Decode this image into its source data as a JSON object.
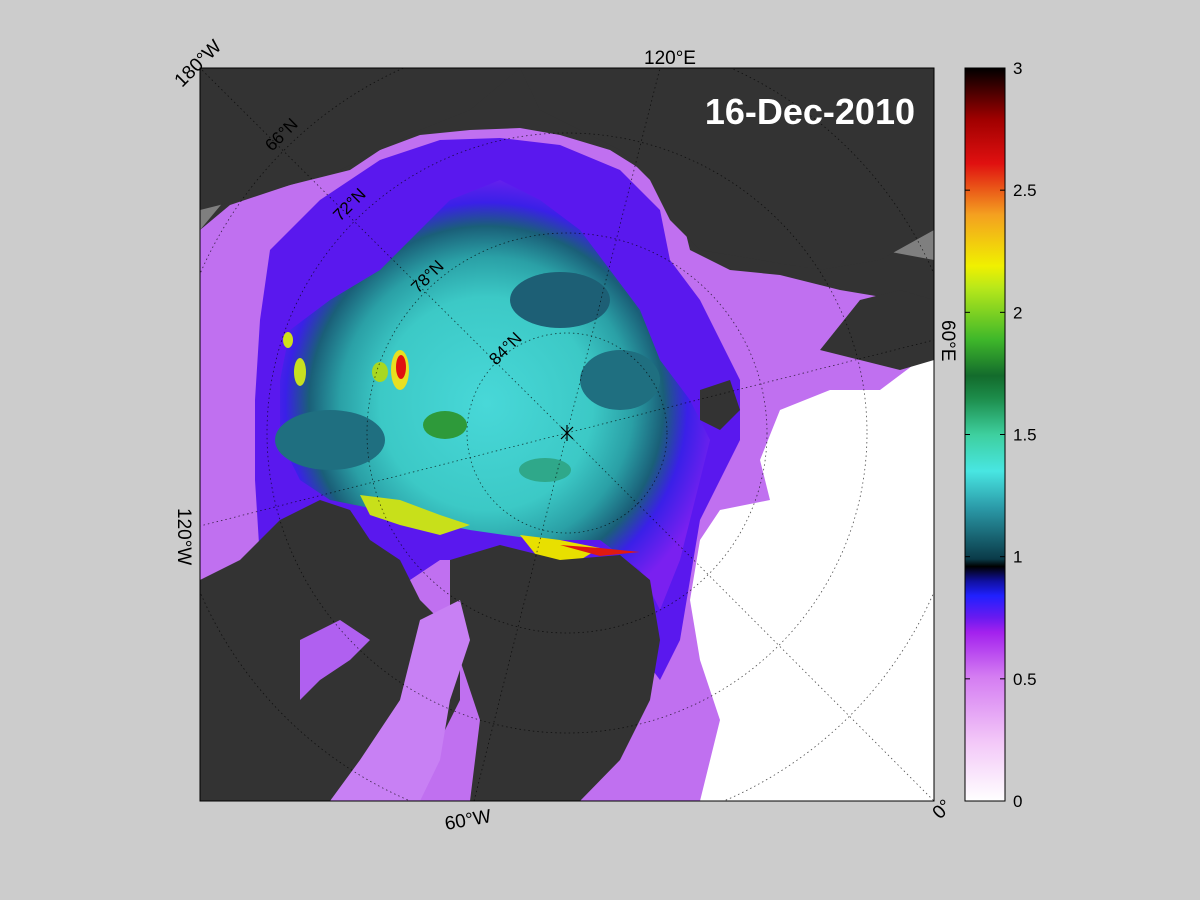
{
  "map": {
    "date": "16-Dec-2010",
    "longitude_labels": {
      "w180": "180°W",
      "e120": "120°E",
      "e60": "60°E",
      "w120": "120°W",
      "w60": "60°W",
      "zero": "0°"
    },
    "latitude_labels": [
      "66°N",
      "72°N",
      "78°N",
      "84°N"
    ],
    "colors": {
      "background": "#cccccc",
      "land": "#333333",
      "ocean_open": "#ffffff",
      "unmapped": "#7f7f7f"
    }
  },
  "colorbar": {
    "min": 0,
    "max": 3,
    "ticks": [
      "0",
      "0.5",
      "1",
      "1.5",
      "2",
      "2.5",
      "3"
    ],
    "stops": [
      [
        "0",
        "#ffffff"
      ],
      [
        "0.08",
        "#f3c8f8"
      ],
      [
        "0.17",
        "#d47cf2"
      ],
      [
        "0.23",
        "#a321ee"
      ],
      [
        "0.25",
        "#6a1af0"
      ],
      [
        "0.28",
        "#2020ff"
      ],
      [
        "0.30",
        "#1010a0"
      ],
      [
        "0.32",
        "#000000"
      ],
      [
        "0.33",
        "#0a3a48"
      ],
      [
        "0.40",
        "#2b9aa8"
      ],
      [
        "0.45",
        "#48e6e2"
      ],
      [
        "0.50",
        "#3ecf9e"
      ],
      [
        "0.55",
        "#1c8c4a"
      ],
      [
        "0.58",
        "#136b2c"
      ],
      [
        "0.63",
        "#3fb82a"
      ],
      [
        "0.70",
        "#b8e81a"
      ],
      [
        "0.73",
        "#f0f000"
      ],
      [
        "0.80",
        "#f4a020"
      ],
      [
        "0.87",
        "#e01010"
      ],
      [
        "0.93",
        "#a00000"
      ],
      [
        "1",
        "#000000"
      ]
    ]
  }
}
